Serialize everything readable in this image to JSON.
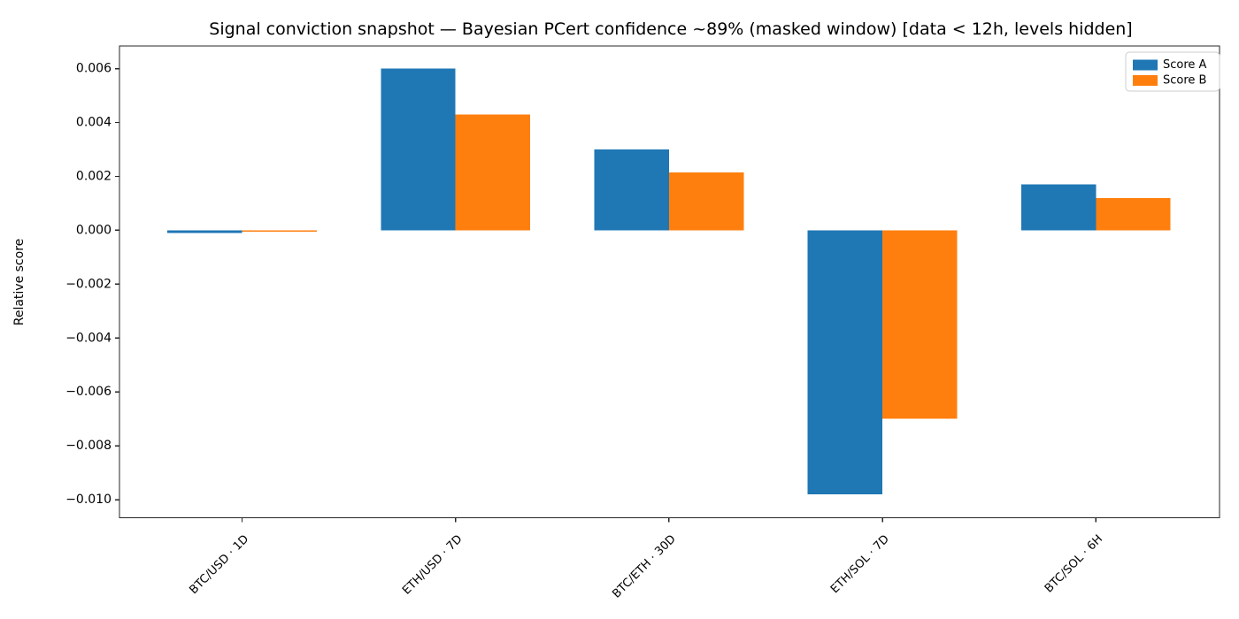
{
  "figure": {
    "background": "#ffffff",
    "axis_color": "#262626",
    "text_color": "#000000"
  },
  "chart_data": {
    "type": "bar",
    "title": "Signal conviction snapshot — Bayesian PCert confidence ~89% (masked window) [data < 12h, levels hidden]",
    "xlabel": "",
    "ylabel": "Relative score",
    "categories": [
      "BTC/USD · 1D",
      "ETH/USD · 7D",
      "BTC/ETH · 30D",
      "ETH/SOL · 7D",
      "BTC/SOL · 6H"
    ],
    "series": [
      {
        "name": "Score A",
        "color": "#1f77b4",
        "values": [
          -0.0001,
          0.006,
          0.003,
          -0.0098,
          0.0017
        ]
      },
      {
        "name": "Score B",
        "color": "#ff7f0e",
        "values": [
          -5e-05,
          0.0043,
          0.00215,
          -0.007,
          0.0012
        ]
      }
    ],
    "ylim": [
      -0.01067,
      0.00684
    ],
    "yticks": {
      "values": [
        0.006,
        0.004,
        0.002,
        0.0,
        -0.002,
        -0.004,
        -0.006,
        -0.008,
        -0.01
      ],
      "labels": [
        "0.006",
        "0.004",
        "0.002",
        "0.000",
        "−0.002",
        "−0.004",
        "−0.006",
        "−0.008",
        "−0.010"
      ]
    },
    "grid": false,
    "legend": {
      "position": "upper right",
      "entries": [
        "Score A",
        "Score B"
      ]
    }
  }
}
